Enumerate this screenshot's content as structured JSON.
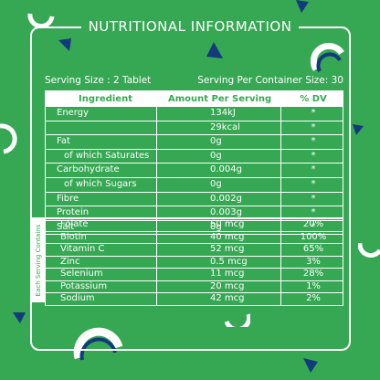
{
  "title": "NUTRITIONAL INFORMATION",
  "serving": {
    "size": "Serving Size : 2 Tablet",
    "per_container": "Serving Per Container Size: 30"
  },
  "table1": {
    "headers": {
      "ingredient": "Ingredient",
      "amount": "Amount Per Serving",
      "dv": "% DV"
    },
    "rows": [
      {
        "ingredient": "Energy",
        "amount": "134kJ",
        "dv": "*"
      },
      {
        "ingredient": "",
        "amount": "29kcal",
        "dv": "*"
      },
      {
        "ingredient": "Fat",
        "amount": "0g",
        "dv": "*"
      },
      {
        "ingredient": "of which Saturates",
        "amount": "0g",
        "dv": "*"
      },
      {
        "ingredient": "Carbohydrate",
        "amount": "0.004g",
        "dv": "*"
      },
      {
        "ingredient": "of which Sugars",
        "amount": "0g",
        "dv": "*"
      },
      {
        "ingredient": "Fibre",
        "amount": "0.002g",
        "dv": "*"
      },
      {
        "ingredient": "Protein",
        "amount": "0.003g",
        "dv": "*"
      },
      {
        "ingredient": "Salt",
        "amount": "0g",
        "dv": "*"
      }
    ]
  },
  "table2": {
    "side_label": "Each Serving Contains",
    "rows": [
      {
        "ingredient": "Folate",
        "amount": "60 mcg",
        "dv": "20%"
      },
      {
        "ingredient": "Biotin",
        "amount": "40 mcg",
        "dv": "100%"
      },
      {
        "ingredient": "Vitamin C",
        "amount": "52 mcg",
        "dv": "65%"
      },
      {
        "ingredient": "Zinc",
        "amount": "0.5 mcg",
        "dv": "3%"
      },
      {
        "ingredient": "Selenium",
        "amount": "11 mcg",
        "dv": "28%"
      },
      {
        "ingredient": "Potassium",
        "amount": "20 mcg",
        "dv": "1%"
      },
      {
        "ingredient": "Sodium",
        "amount": "42 mcg",
        "dv": "2%"
      }
    ]
  },
  "colors": {
    "background": "#36a853",
    "navy": "#123a7c",
    "white": "#ffffff"
  },
  "decorations": [
    "ring-arc-shape",
    "triangle-shape"
  ]
}
